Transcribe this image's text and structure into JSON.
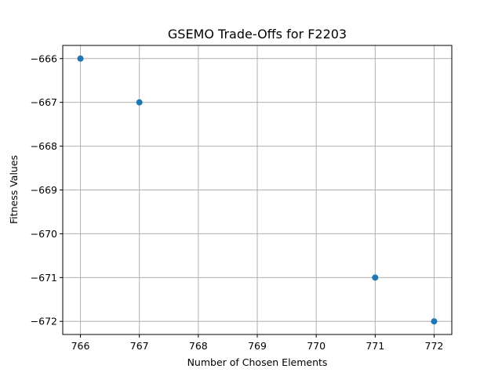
{
  "chart_data": {
    "type": "scatter",
    "title": "GSEMO Trade-Offs for F2203",
    "xlabel": "Number of Chosen Elements",
    "ylabel": "Fitness Values",
    "series": [
      {
        "x": [
          766,
          767,
          771,
          772
        ],
        "y": [
          -666,
          -667,
          -671,
          -672
        ]
      }
    ],
    "xlim": [
      765.7,
      772.3
    ],
    "ylim": [
      -672.3,
      -665.7
    ],
    "xticks": [
      766,
      767,
      768,
      769,
      770,
      771,
      772
    ],
    "yticks": [
      -666,
      -667,
      -668,
      -669,
      -670,
      -671,
      -672
    ],
    "xtick_labels": [
      "766",
      "767",
      "768",
      "769",
      "770",
      "771",
      "772"
    ],
    "ytick_labels": [
      "−666",
      "−667",
      "−668",
      "−669",
      "−670",
      "−671",
      "−672"
    ],
    "grid": true,
    "colors": {
      "marker": "#1f77b4",
      "grid": "#b0b0b0"
    }
  }
}
